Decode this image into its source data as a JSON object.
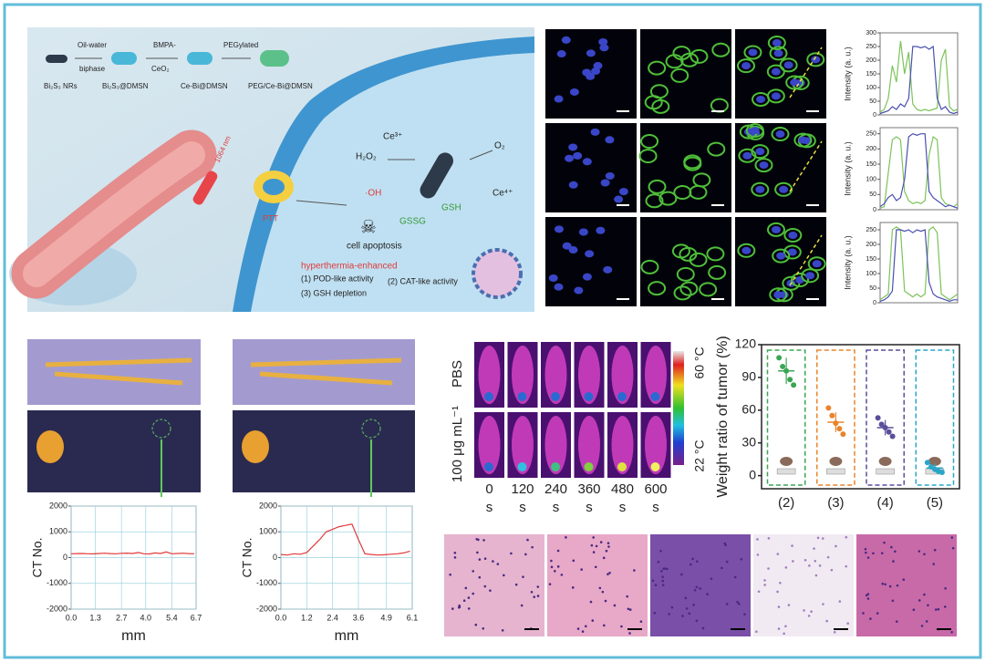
{
  "schematic": {
    "nrs": "Bi₂S₃ NRs",
    "oil_water": "Oil-water",
    "biphase": "biphase",
    "dmsn": "Bi₂S₃@DMSN",
    "bmpa": "BMPA-",
    "ceo2": "CeO₂",
    "ce_bi": "Ce-Bi@DMSN",
    "pegylated": "PEGylated",
    "peg_ce_bi": "PEG/Ce-Bi@DMSN",
    "laser": "1064 nm",
    "ptt": "PTT",
    "h2o2": "H₂O₂",
    "ce3": "Ce³⁺",
    "ce4": "Ce⁴⁺",
    "o2": "O₂",
    "oh": "·OH",
    "gsh": "GSH",
    "gssg": "GSSG",
    "apoptosis": "cell apoptosis",
    "enhanced": "hyperthermia-enhanced",
    "pod": "(1) POD-like activity",
    "cat": "(2) CAT-like activity",
    "depletion": "(3) GSH depletion"
  },
  "thermal": {
    "rows": [
      "PBS",
      "100 μg mL⁻¹"
    ],
    "times": [
      0,
      120,
      240,
      360,
      480,
      600
    ],
    "time_unit": "s",
    "colorbar_max": "60 °C",
    "colorbar_min": "22 °C"
  },
  "chart_data": [
    {
      "type": "line",
      "ylabel": "Intensity (a. u.)",
      "ylim": [
        0,
        300
      ],
      "yticks": [
        0,
        50,
        100,
        150,
        200,
        250,
        300
      ],
      "series": [
        {
          "color": "#7cc35a",
          "values": [
            10,
            20,
            60,
            180,
            120,
            270,
            150,
            230,
            40,
            20,
            15,
            20,
            15,
            20,
            25,
            200,
            240,
            30,
            15,
            20
          ]
        },
        {
          "color": "#4a4fb0",
          "values": [
            5,
            10,
            15,
            30,
            20,
            40,
            30,
            60,
            250,
            250,
            245,
            250,
            240,
            250,
            60,
            20,
            30,
            10,
            5,
            10
          ]
        }
      ]
    },
    {
      "type": "line",
      "ylabel": "Intensity (a. u.)",
      "ylim": [
        0,
        270
      ],
      "yticks": [
        0,
        50,
        100,
        150,
        200,
        250
      ],
      "series": [
        {
          "color": "#7cc35a",
          "values": [
            5,
            10,
            120,
            230,
            240,
            230,
            60,
            30,
            20,
            25,
            20,
            30,
            180,
            240,
            230,
            40,
            20,
            15,
            10,
            20
          ]
        },
        {
          "color": "#4a4fb0",
          "values": [
            10,
            20,
            40,
            50,
            30,
            40,
            100,
            240,
            250,
            245,
            250,
            250,
            60,
            40,
            30,
            20,
            10,
            15,
            10,
            5
          ]
        }
      ]
    },
    {
      "type": "line",
      "ylabel": "Intensity (a. u.)",
      "ylim": [
        0,
        275
      ],
      "yticks": [
        0,
        50,
        100,
        150,
        200,
        250
      ],
      "series": [
        {
          "color": "#7cc35a",
          "values": [
            10,
            20,
            30,
            250,
            260,
            250,
            40,
            30,
            20,
            30,
            20,
            30,
            250,
            260,
            240,
            30,
            20,
            10,
            20,
            30
          ]
        },
        {
          "color": "#4a4fb0",
          "values": [
            5,
            10,
            20,
            40,
            250,
            250,
            245,
            250,
            240,
            250,
            245,
            250,
            70,
            30,
            20,
            15,
            10,
            5,
            10,
            10
          ]
        }
      ]
    },
    {
      "type": "line",
      "ylabel": "CT No.",
      "xlabel": "mm",
      "grid": true,
      "xlim": [
        0,
        6.7
      ],
      "xticks": [
        {
          "value": 0,
          "label": "0.0"
        },
        1.3,
        2.7,
        {
          "value": 4,
          "label": "4.0"
        },
        5.4,
        6.7
      ],
      "ylim": [
        -2000,
        2000
      ],
      "yticks": [
        -2000,
        -1000,
        0,
        1000,
        2000
      ],
      "x": [
        0,
        0.3,
        0.6,
        0.9,
        1.2,
        1.5,
        1.8,
        2.1,
        2.4,
        2.7,
        3.0,
        3.3,
        3.6,
        3.9,
        4.2,
        4.5,
        4.8,
        5.1,
        5.4,
        5.7,
        6.0,
        6.3,
        6.6
      ],
      "series": [
        {
          "color": "#e03a3a",
          "values": [
            150,
            155,
            160,
            150,
            145,
            160,
            170,
            155,
            150,
            165,
            175,
            160,
            200,
            150,
            140,
            180,
            160,
            220,
            150,
            160,
            170,
            155,
            150
          ]
        }
      ]
    },
    {
      "type": "line",
      "ylabel": "CT No.",
      "xlabel": "mm",
      "grid": true,
      "xlim": [
        0,
        6.1
      ],
      "xticks": [
        {
          "value": 0,
          "label": "0.0"
        },
        1.2,
        2.4,
        3.6,
        4.9,
        6.1
      ],
      "ylim": [
        -2000,
        2000
      ],
      "yticks": [
        -2000,
        -1000,
        0,
        1000,
        2000
      ],
      "x": [
        0,
        0.3,
        0.6,
        0.9,
        1.2,
        1.5,
        1.8,
        2.1,
        2.4,
        2.7,
        3.0,
        3.3,
        3.6,
        3.9,
        4.2,
        4.5,
        4.8,
        5.1,
        5.4,
        5.7,
        6.0
      ],
      "series": [
        {
          "color": "#e03a3a",
          "values": [
            120,
            100,
            150,
            130,
            200,
            450,
            700,
            1000,
            1100,
            1200,
            1250,
            1300,
            700,
            150,
            120,
            100,
            110,
            130,
            150,
            180,
            250
          ]
        }
      ]
    },
    {
      "type": "dot",
      "ylabel": "Weight ratio of tumor (%)",
      "ylim": [
        -12,
        120
      ],
      "yticks": [
        0,
        30,
        60,
        90,
        120
      ],
      "categories": [
        "(2)",
        "(3)",
        "(4)",
        "(5)"
      ],
      "colors": [
        "#3aa655",
        "#e8842c",
        "#5a4e9a",
        "#2aa6c8"
      ],
      "points": [
        [
          108,
          100,
          96,
          88,
          83
        ],
        [
          62,
          55,
          48,
          43,
          38
        ],
        [
          53,
          47,
          44,
          40,
          36
        ],
        [
          12,
          8,
          6,
          4,
          3
        ]
      ],
      "means": [
        96,
        49,
        44,
        7
      ],
      "errors": [
        12,
        9,
        7,
        4
      ]
    }
  ]
}
